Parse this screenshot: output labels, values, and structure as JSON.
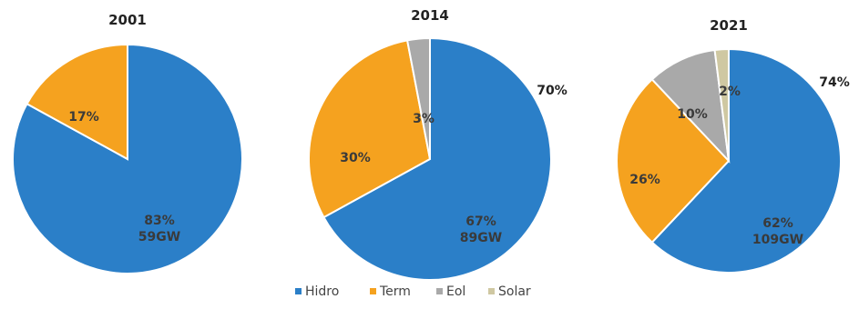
{
  "chart_data": [
    {
      "type": "pie",
      "title": "2001",
      "categories": [
        "Hidro",
        "Term"
      ],
      "values": [
        83,
        17
      ],
      "slice_labels": [
        "83%\n59GW",
        "17%"
      ],
      "outside_labels": []
    },
    {
      "type": "pie",
      "title": "2014",
      "categories": [
        "Hidro",
        "Term",
        "Eol"
      ],
      "values": [
        67,
        30,
        3
      ],
      "slice_labels": [
        "67%\n89GW",
        "30%",
        "3%"
      ],
      "outside_labels": [
        "70%"
      ]
    },
    {
      "type": "pie",
      "title": "2021",
      "categories": [
        "Hidro",
        "Term",
        "Eol",
        "Solar"
      ],
      "values": [
        62,
        26,
        10,
        2
      ],
      "slice_labels": [
        "62%\n109GW",
        "26%",
        "10%",
        "2%"
      ],
      "outside_labels": [
        "74%"
      ]
    }
  ],
  "legend": {
    "position": "bottom",
    "items": [
      {
        "name": "Hidro",
        "color": "#2b7fc8"
      },
      {
        "name": "Term",
        "color": "#f5a21f"
      },
      {
        "name": "Eol",
        "color": "#a9a9a9"
      },
      {
        "name": "Solar",
        "color": "#cfc8a2"
      }
    ]
  },
  "colors": {
    "Hidro": "#2b7fc8",
    "Term": "#f5a21f",
    "Eol": "#a9a9a9",
    "Solar": "#cfc8a2",
    "label": "#3a3a3a"
  }
}
